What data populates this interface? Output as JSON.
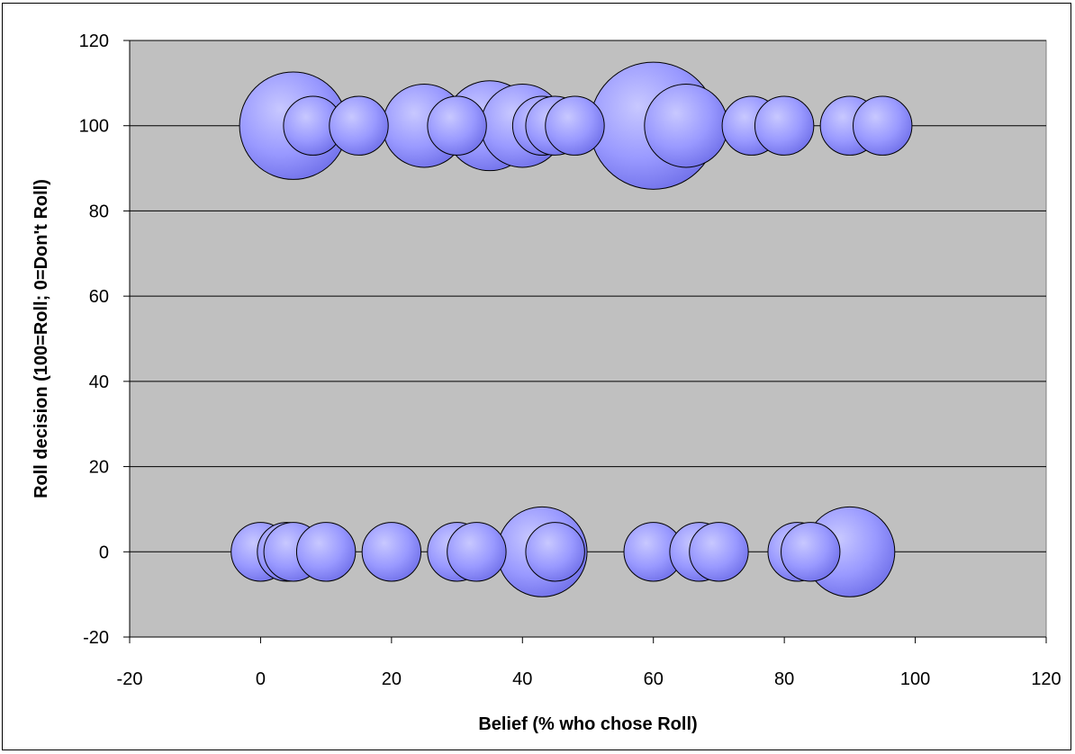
{
  "chart_data": {
    "type": "bubble",
    "title": "",
    "xlabel": "Belief (% who chose Roll)",
    "ylabel": "Roll decision (100=Roll; 0=Don't Roll)",
    "xlim": [
      -20,
      120
    ],
    "ylim": [
      -20,
      120
    ],
    "x_ticks": [
      -20,
      0,
      20,
      40,
      60,
      80,
      100,
      120
    ],
    "y_ticks": [
      -20,
      0,
      20,
      40,
      60,
      80,
      100,
      120
    ],
    "x_tick_labels": [
      "-20",
      "0",
      "20",
      "40",
      "60",
      "80",
      "100",
      "120"
    ],
    "y_tick_labels": [
      "-20",
      "0",
      "20",
      "40",
      "60",
      "80",
      "100",
      "120"
    ],
    "grid": "horizontal",
    "legend": "none",
    "colors": {
      "plot_background": "#c0c0c0",
      "bubble_fill": "#9999ff",
      "bubble_highlight": "#c8c8ff",
      "bubble_shadow": "#6a6ae6",
      "gridline": "#000000"
    },
    "points": [
      {
        "x": 5,
        "y": 100,
        "size": 5
      },
      {
        "x": 8,
        "y": 100,
        "size": 1.5
      },
      {
        "x": 15,
        "y": 100,
        "size": 1.5
      },
      {
        "x": 25,
        "y": 100,
        "size": 3
      },
      {
        "x": 30,
        "y": 100,
        "size": 1.5
      },
      {
        "x": 35,
        "y": 100,
        "size": 3.5
      },
      {
        "x": 40,
        "y": 100,
        "size": 3
      },
      {
        "x": 43,
        "y": 100,
        "size": 1.5
      },
      {
        "x": 45,
        "y": 100,
        "size": 1.5
      },
      {
        "x": 48,
        "y": 100,
        "size": 1.5
      },
      {
        "x": 60,
        "y": 100,
        "size": 7
      },
      {
        "x": 65,
        "y": 100,
        "size": 3
      },
      {
        "x": 75,
        "y": 100,
        "size": 1.5
      },
      {
        "x": 80,
        "y": 100,
        "size": 1.5
      },
      {
        "x": 90,
        "y": 100,
        "size": 1.5
      },
      {
        "x": 95,
        "y": 100,
        "size": 1.5
      },
      {
        "x": 0,
        "y": 0,
        "size": 1.5
      },
      {
        "x": 4,
        "y": 0,
        "size": 1.5
      },
      {
        "x": 5,
        "y": 0,
        "size": 1.5
      },
      {
        "x": 10,
        "y": 0,
        "size": 1.5
      },
      {
        "x": 20,
        "y": 0,
        "size": 1.5
      },
      {
        "x": 30,
        "y": 0,
        "size": 1.5
      },
      {
        "x": 33,
        "y": 0,
        "size": 1.5
      },
      {
        "x": 43,
        "y": 0,
        "size": 3.5
      },
      {
        "x": 45,
        "y": 0,
        "size": 1.5
      },
      {
        "x": 60,
        "y": 0,
        "size": 1.5
      },
      {
        "x": 67,
        "y": 0,
        "size": 1.5
      },
      {
        "x": 70,
        "y": 0,
        "size": 1.5
      },
      {
        "x": 82,
        "y": 0,
        "size": 1.5
      },
      {
        "x": 84,
        "y": 0,
        "size": 1.5
      },
      {
        "x": 90,
        "y": 0,
        "size": 3.5
      }
    ]
  }
}
